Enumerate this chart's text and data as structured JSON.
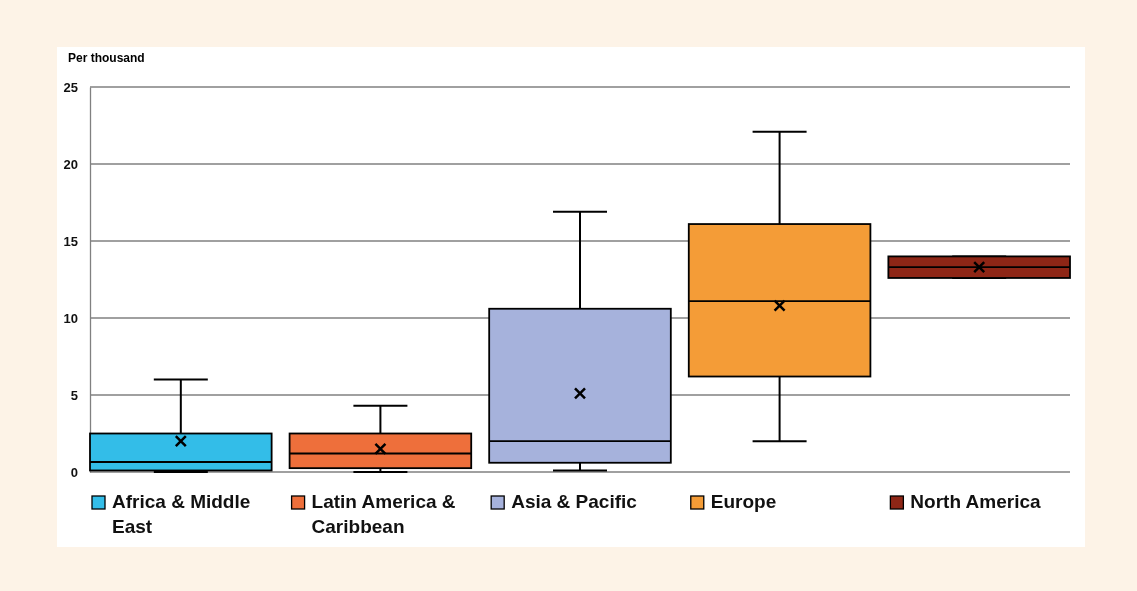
{
  "chart_data": {
    "type": "box",
    "ylabel": "Per thousand",
    "categories": [
      null
    ],
    "series": [
      {
        "name": "Africa & Middle East",
        "color": "#33bde8",
        "boxes": [
          {
            "low": 0,
            "q1": 0.1,
            "median": 0.65,
            "q3": 2.5,
            "high": 6.0,
            "mean": 2.0
          }
        ]
      },
      {
        "name": "Latin America & Caribbean",
        "color": "#ee6f3b",
        "boxes": [
          {
            "low": 0,
            "q1": 0.25,
            "median": 1.2,
            "q3": 2.5,
            "high": 4.3,
            "mean": 1.5
          }
        ]
      },
      {
        "name": "Asia & Pacific",
        "color": "#a6b2dc",
        "boxes": [
          {
            "low": 0.1,
            "q1": 0.6,
            "median": 2.0,
            "q3": 10.6,
            "high": 16.9,
            "mean": 5.1
          }
        ]
      },
      {
        "name": "Europe",
        "color": "#f49c37",
        "boxes": [
          {
            "low": 2.0,
            "q1": 6.2,
            "median": 11.1,
            "q3": 16.1,
            "high": 22.1,
            "mean": 10.8
          }
        ]
      },
      {
        "name": "North America",
        "color": "#8e2616",
        "boxes": [
          {
            "low": 12.6,
            "q1": 12.6,
            "median": 13.3,
            "q3": 14.0,
            "high": 14.0,
            "mean": 13.3
          }
        ]
      }
    ],
    "ylim": [
      0,
      25
    ],
    "yticks": [
      0,
      5,
      10,
      15,
      20,
      25
    ],
    "grid": "y",
    "legend": "bottom",
    "tick_labels": "y"
  }
}
